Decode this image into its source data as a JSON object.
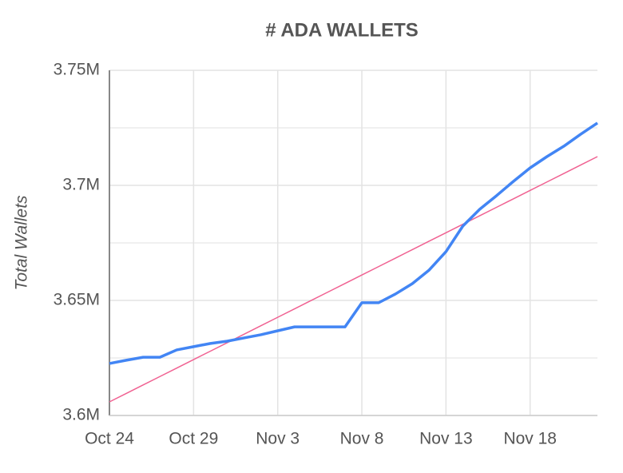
{
  "chart_data": {
    "type": "line",
    "title": "# ADA WALLETS",
    "y_label": "Total Wallets",
    "categories": [
      "Oct 24",
      null,
      null,
      null,
      null,
      "Oct 29",
      null,
      null,
      null,
      null,
      "Nov 3",
      null,
      null,
      null,
      null,
      "Nov 8",
      null,
      null,
      null,
      null,
      "Nov 13",
      null,
      null,
      null,
      null,
      "Nov 18",
      null,
      null,
      null,
      null
    ],
    "series": [
      {
        "color": "#4285f4",
        "values": [
          3622600,
          3624000,
          3625300,
          3625300,
          3628500,
          3629900,
          3631300,
          3632300,
          3633700,
          3635100,
          3636800,
          3638500,
          3638500,
          3638500,
          3638500,
          3649000,
          3649000,
          3652800,
          3657300,
          3663200,
          3671200,
          3682300,
          3689600,
          3695500,
          3701700,
          3707600,
          3712500,
          3717000,
          3722200,
          3727100
        ]
      },
      {
        "color": "#f06292",
        "values": [
          3605900,
          3609576,
          3613252,
          3616928,
          3620604,
          3624280,
          3627956,
          3631632,
          3635308,
          3638984,
          3642660,
          3646336,
          3650012,
          3653688,
          3657364,
          3661040,
          3664716,
          3668392,
          3672068,
          3675744,
          3679420,
          3683096,
          3686772,
          3690448,
          3694124,
          3697800,
          3701476,
          3705152,
          3708828,
          3712504
        ]
      }
    ],
    "ylim": [
      3600000,
      3750000
    ],
    "yticks": [
      {
        "value": 3600000,
        "label": "3.6M"
      },
      {
        "value": 3650000,
        "label": "3.65M"
      },
      {
        "value": 3700000,
        "label": "3.7M"
      },
      {
        "value": 3750000,
        "label": "3.75M"
      }
    ],
    "minor_yticks": [
      3625000,
      3675000,
      3725000
    ],
    "grid": true
  }
}
